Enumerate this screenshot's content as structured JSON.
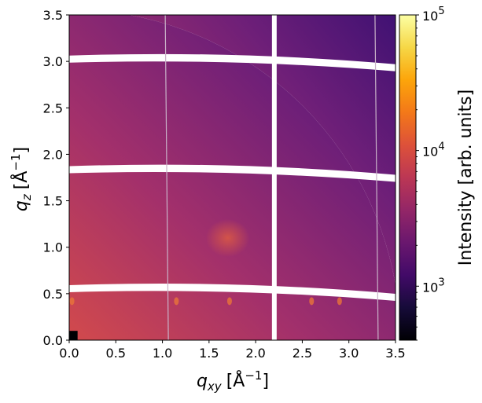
{
  "chart_data": {
    "type": "heatmap",
    "title": "",
    "xlabel": {
      "var": "q",
      "sub": "xy",
      "unit": "[Å",
      "exp": "−1",
      "close": "]"
    },
    "ylabel": {
      "var": "q",
      "sub": "z",
      "unit": "[Å",
      "exp": "−1",
      "close": "]"
    },
    "xlim": [
      0.0,
      3.5
    ],
    "ylim": [
      0.0,
      3.5
    ],
    "x_ticks": [
      "0.0",
      "0.5",
      "1.0",
      "1.5",
      "2.0",
      "2.5",
      "3.0",
      "3.5"
    ],
    "y_ticks": [
      "0.0",
      "0.5",
      "1.0",
      "1.5",
      "2.0",
      "2.5",
      "3.0",
      "3.5"
    ],
    "colorbar": {
      "label": "Intensity [arb. units]",
      "scale": "log",
      "range": [
        400,
        100000
      ],
      "colormap": "inferno",
      "major_ticks": [
        {
          "value": 1000,
          "base": "10",
          "exp": "3"
        },
        {
          "value": 10000,
          "base": "10",
          "exp": "4"
        },
        {
          "value": 100000,
          "base": "10",
          "exp": "5"
        }
      ]
    },
    "detector_edge_q": 3.55,
    "gaps": {
      "horizontal_qz": [
        0.55,
        1.83,
        3.02
      ],
      "vertical_qxy": [
        2.2
      ]
    },
    "features": [
      {
        "label": "broad diffuse peak",
        "q_xy": 1.7,
        "q_z": 1.1,
        "relative_intensity": "medium"
      },
      {
        "label": "in-plane peaks",
        "q_xy_list": [
          0.03,
          1.15,
          1.72,
          2.6,
          2.9
        ],
        "q_z": 0.42,
        "relative_intensity": "medium"
      }
    ],
    "grid": false
  }
}
